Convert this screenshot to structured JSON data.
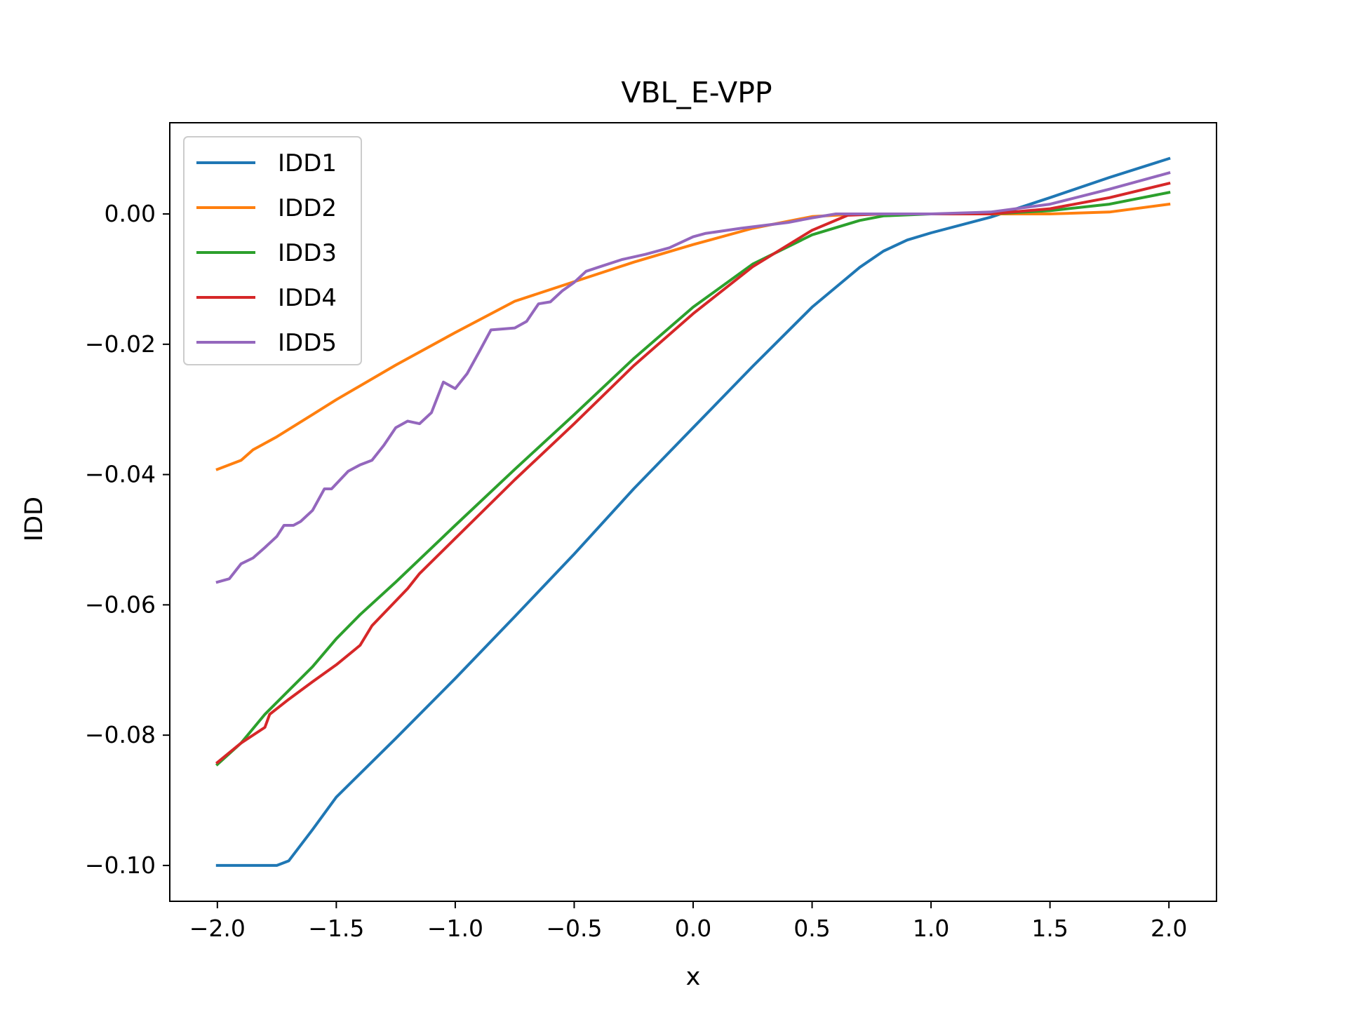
{
  "chart_data": {
    "type": "line",
    "title": "VBL_E-VPP",
    "xlabel": "x",
    "ylabel": "IDD",
    "xlim": [
      -2.2,
      2.2
    ],
    "ylim": [
      -0.1055,
      0.014
    ],
    "xticks": [
      -2.0,
      -1.5,
      -1.0,
      -0.5,
      0.0,
      0.5,
      1.0,
      1.5,
      2.0
    ],
    "xtick_labels": [
      "−2.0",
      "−1.5",
      "−1.0",
      "−0.5",
      "0.0",
      "0.5",
      "1.0",
      "1.5",
      "2.0"
    ],
    "yticks": [
      0.0,
      -0.02,
      -0.04,
      -0.06,
      -0.08,
      -0.1
    ],
    "ytick_labels": [
      "0.00",
      "−0.02",
      "−0.04",
      "−0.06",
      "−0.08",
      "−0.10"
    ],
    "grid": false,
    "legend_position": "upper-left",
    "series": [
      {
        "name": "IDD1",
        "color": "#1f77b4",
        "x": [
          -2.0,
          -1.9,
          -1.8,
          -1.75,
          -1.7,
          -1.6,
          -1.5,
          -1.25,
          -1.0,
          -0.75,
          -0.5,
          -0.25,
          0.0,
          0.25,
          0.5,
          0.7,
          0.8,
          0.9,
          1.0,
          1.25,
          1.5,
          1.75,
          2.0
        ],
        "y": [
          -0.1,
          -0.1,
          -0.1,
          -0.1,
          -0.0993,
          -0.0945,
          -0.0895,
          -0.0805,
          -0.0713,
          -0.0618,
          -0.0522,
          -0.0422,
          -0.0328,
          -0.0234,
          -0.0143,
          -0.0082,
          -0.0057,
          -0.004,
          -0.0029,
          -0.0005,
          0.0025,
          0.0056,
          0.0085
        ]
      },
      {
        "name": "IDD2",
        "color": "#ff7f0e",
        "x": [
          -2.0,
          -1.9,
          -1.85,
          -1.75,
          -1.6,
          -1.5,
          -1.25,
          -1.0,
          -0.75,
          -0.5,
          -0.25,
          0.0,
          0.25,
          0.5,
          0.7,
          1.0,
          1.25,
          1.5,
          1.75,
          2.0
        ],
        "y": [
          -0.0392,
          -0.0378,
          -0.0362,
          -0.0342,
          -0.0308,
          -0.0285,
          -0.0232,
          -0.0182,
          -0.0134,
          -0.0104,
          -0.0074,
          -0.0047,
          -0.0022,
          -0.0004,
          0.0,
          0.0,
          0.0,
          0.0,
          0.0003,
          0.0015
        ]
      },
      {
        "name": "IDD3",
        "color": "#2ca02c",
        "x": [
          -2.0,
          -1.9,
          -1.8,
          -1.6,
          -1.5,
          -1.4,
          -1.25,
          -1.0,
          -0.75,
          -0.5,
          -0.25,
          0.0,
          0.25,
          0.5,
          0.7,
          0.8,
          1.0,
          1.25,
          1.5,
          1.75,
          2.0
        ],
        "y": [
          -0.0845,
          -0.0812,
          -0.0768,
          -0.0695,
          -0.0652,
          -0.0615,
          -0.0565,
          -0.0478,
          -0.0392,
          -0.0308,
          -0.0222,
          -0.0143,
          -0.0077,
          -0.0032,
          -0.001,
          -0.0003,
          0.0,
          0.0,
          0.0005,
          0.0015,
          0.0033
        ]
      },
      {
        "name": "IDD4",
        "color": "#d62728",
        "x": [
          -2.0,
          -1.9,
          -1.8,
          -1.78,
          -1.7,
          -1.6,
          -1.5,
          -1.4,
          -1.35,
          -1.2,
          -1.15,
          -1.0,
          -0.75,
          -0.5,
          -0.25,
          0.0,
          0.25,
          0.5,
          0.65,
          0.8,
          1.0,
          1.25,
          1.5,
          1.75,
          2.0
        ],
        "y": [
          -0.0842,
          -0.0812,
          -0.0788,
          -0.0768,
          -0.0745,
          -0.0718,
          -0.0692,
          -0.0662,
          -0.0632,
          -0.0575,
          -0.0552,
          -0.0498,
          -0.0408,
          -0.0322,
          -0.0233,
          -0.0153,
          -0.0081,
          -0.0025,
          -0.0002,
          0.0,
          0.0,
          0.0,
          0.0008,
          0.0025,
          0.0047
        ]
      },
      {
        "name": "IDD5",
        "color": "#9467bd",
        "x": [
          -2.0,
          -1.95,
          -1.9,
          -1.85,
          -1.8,
          -1.75,
          -1.72,
          -1.68,
          -1.65,
          -1.6,
          -1.55,
          -1.52,
          -1.45,
          -1.4,
          -1.35,
          -1.3,
          -1.25,
          -1.2,
          -1.15,
          -1.1,
          -1.05,
          -1.0,
          -0.95,
          -0.9,
          -0.85,
          -0.75,
          -0.7,
          -0.65,
          -0.6,
          -0.55,
          -0.5,
          -0.45,
          -0.4,
          -0.3,
          -0.2,
          -0.1,
          0.0,
          0.05,
          0.2,
          0.4,
          0.5,
          0.6,
          0.7,
          1.0,
          1.25,
          1.5,
          1.75,
          2.0
        ],
        "y": [
          -0.0565,
          -0.056,
          -0.0537,
          -0.0528,
          -0.0512,
          -0.0495,
          -0.0478,
          -0.0478,
          -0.0472,
          -0.0455,
          -0.0422,
          -0.0422,
          -0.0395,
          -0.0385,
          -0.0378,
          -0.0355,
          -0.0328,
          -0.0318,
          -0.0322,
          -0.0305,
          -0.0258,
          -0.0268,
          -0.0245,
          -0.0212,
          -0.0178,
          -0.0175,
          -0.0165,
          -0.0138,
          -0.0135,
          -0.0118,
          -0.0105,
          -0.0088,
          -0.0082,
          -0.007,
          -0.0062,
          -0.0052,
          -0.0035,
          -0.003,
          -0.0022,
          -0.0013,
          -0.0006,
          0.0,
          0.0,
          0.0,
          0.0003,
          0.0015,
          0.0038,
          0.0063
        ]
      }
    ]
  }
}
